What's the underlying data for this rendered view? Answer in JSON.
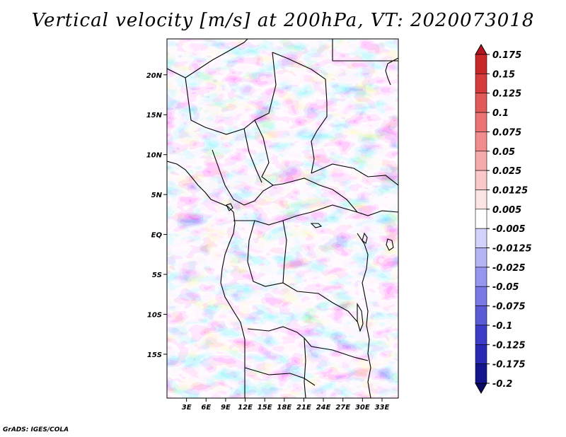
{
  "title": "Vertical velocity [m/s] at 200hPa, VT: 2020073018",
  "credit": "GrADS: IGES/COLA",
  "map": {
    "projection": "latlon",
    "lon_range": [
      0,
      35.5
    ],
    "lat_range": [
      -20.5,
      24.5
    ],
    "lat_ticks": [
      {
        "lat": 20,
        "label": "20N"
      },
      {
        "lat": 15,
        "label": "15N"
      },
      {
        "lat": 10,
        "label": "10N"
      },
      {
        "lat": 5,
        "label": "5N"
      },
      {
        "lat": 0,
        "label": "EQ"
      },
      {
        "lat": -5,
        "label": "5S"
      },
      {
        "lat": -10,
        "label": "10S"
      },
      {
        "lat": -15,
        "label": "15S"
      }
    ],
    "lon_ticks": [
      {
        "lon": 3,
        "label": "3E"
      },
      {
        "lon": 6,
        "label": "6E"
      },
      {
        "lon": 9,
        "label": "9E"
      },
      {
        "lon": 12,
        "label": "12E"
      },
      {
        "lon": 15,
        "label": "15E"
      },
      {
        "lon": 18,
        "label": "18E"
      },
      {
        "lon": 21,
        "label": "21E"
      },
      {
        "lon": 24,
        "label": "24E"
      },
      {
        "lon": 27,
        "label": "27E"
      },
      {
        "lon": 30,
        "label": "30E"
      },
      {
        "lon": 33,
        "label": "33E"
      }
    ]
  },
  "colorbar": {
    "levels": [
      "0.175",
      "0.15",
      "0.125",
      "0.1",
      "0.075",
      "0.05",
      "0.025",
      "0.0125",
      "0.005",
      "-0.005",
      "-0.0125",
      "-0.025",
      "-0.05",
      "-0.075",
      "-0.1",
      "-0.125",
      "-0.175",
      "-0.2"
    ],
    "colors": [
      "#b4141e",
      "#c82828",
      "#d73c3c",
      "#e15a5a",
      "#eb7373",
      "#f08c8c",
      "#f5aaaa",
      "#fac8c8",
      "#fde4e4",
      "#ffffff",
      "#d2d2fa",
      "#b4b4f5",
      "#9696f0",
      "#7878e6",
      "#5a5ad7",
      "#3c3cc8",
      "#2828b4",
      "#14148c",
      "#0a0a64"
    ]
  }
}
